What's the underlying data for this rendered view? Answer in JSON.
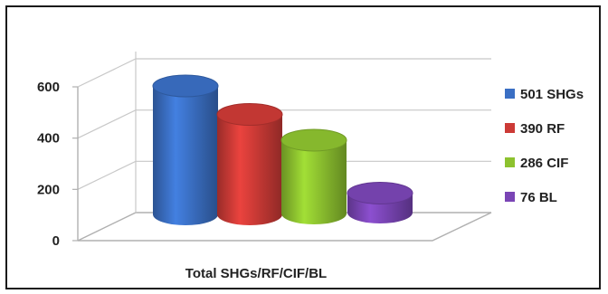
{
  "chart_data": {
    "type": "bar",
    "categories": [
      "Total SHGs/RF/CIF/BL"
    ],
    "xlabel": "Total SHGs/RF/CIF/BL",
    "ylabel": "",
    "title": "",
    "ylim": [
      0,
      600
    ],
    "yticks": [
      0,
      200,
      400,
      600
    ],
    "grid": true,
    "legend_position": "right",
    "series": [
      {
        "name": "501 SHGs",
        "values": [
          501
        ],
        "color": "#3a6fc4"
      },
      {
        "name": "390 RF",
        "values": [
          390
        ],
        "color": "#cc3a36"
      },
      {
        "name": "286 CIF",
        "values": [
          286
        ],
        "color": "#8dc22f"
      },
      {
        "name": "76 BL",
        "values": [
          76
        ],
        "color": "#7a45b5"
      }
    ]
  }
}
